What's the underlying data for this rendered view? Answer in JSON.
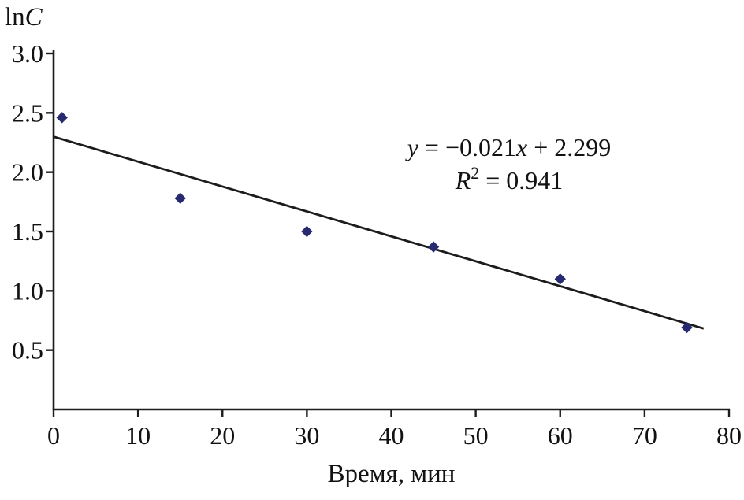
{
  "chart_data": {
    "type": "scatter",
    "title": "",
    "xlabel": "Время, мин",
    "ylabel": "lnC",
    "ylabel_parts": [
      {
        "t": "ln",
        "i": false
      },
      {
        "t": "C",
        "i": true
      }
    ],
    "xlim": [
      0,
      80
    ],
    "ylim": [
      0,
      3.0
    ],
    "grid": false,
    "legend": null,
    "xticks": {
      "values": [
        0,
        10,
        20,
        30,
        40,
        50,
        60,
        70,
        80
      ],
      "labels": [
        "0",
        "10",
        "20",
        "30",
        "40",
        "50",
        "60",
        "70",
        "80"
      ]
    },
    "yticks": {
      "values": [
        0.5,
        1.0,
        1.5,
        2.0,
        2.5,
        3.0
      ],
      "labels": [
        "0.5",
        "1.0",
        "1.5",
        "2.0",
        "2.5",
        "3.0"
      ]
    },
    "points": [
      {
        "x": 1,
        "y": 2.46
      },
      {
        "x": 15,
        "y": 1.78
      },
      {
        "x": 30,
        "y": 1.5
      },
      {
        "x": 45,
        "y": 1.37
      },
      {
        "x": 60,
        "y": 1.1
      },
      {
        "x": 75,
        "y": 0.69
      }
    ],
    "trendline": {
      "slope": -0.021,
      "intercept": 2.299,
      "x_start": 0,
      "x_end": 77
    },
    "annotation": {
      "equation_text": "y = −0.021x + 2.299",
      "r_squared_text": "R² = 0.941",
      "lines": [
        {
          "parts": [
            {
              "t": "y",
              "i": true
            },
            {
              "t": " = −0.021",
              "i": false
            },
            {
              "t": "x",
              "i": true
            },
            {
              "t": " + 2.299",
              "i": false
            }
          ]
        },
        {
          "parts": [
            {
              "t": "R",
              "i": true
            },
            {
              "t": "2",
              "i": false,
              "sup": true
            },
            {
              "t": " = 0.941",
              "i": false
            }
          ]
        }
      ]
    },
    "colors": {
      "point": "#272a6e",
      "line": "#1c1c1c",
      "axis": "#1c1c1c",
      "text": "#121212"
    }
  }
}
